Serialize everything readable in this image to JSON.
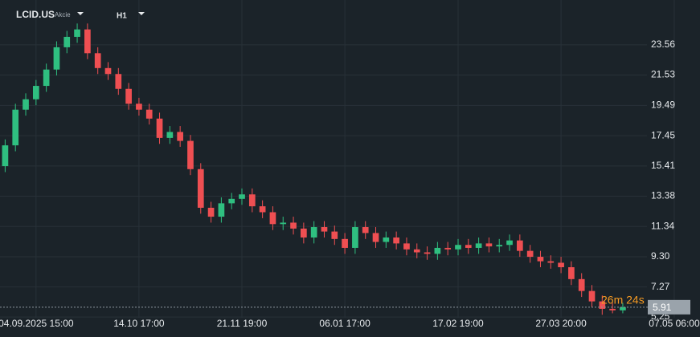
{
  "header": {
    "symbol": "LCID.US",
    "asset_type": "Akcie",
    "timeframe": "H1"
  },
  "chart_data": {
    "type": "candlestick",
    "categories": [
      null,
      null,
      null,
      "04.09.2025 15:00",
      null,
      null,
      null,
      null,
      null,
      null,
      null,
      null,
      null,
      "14.10 17:00",
      null,
      null,
      null,
      null,
      null,
      null,
      null,
      null,
      null,
      "21.11 19:00",
      null,
      null,
      null,
      null,
      null,
      null,
      null,
      null,
      null,
      "06.01 17:00",
      null,
      null,
      null,
      null,
      null,
      null,
      null,
      null,
      null,
      null,
      "17.02 19:00",
      null,
      null,
      null,
      null,
      null,
      null,
      null,
      null,
      null,
      "27.03 20:00",
      null,
      null,
      null,
      null,
      null,
      null,
      null,
      null,
      null,
      null,
      "07.05 06:00",
      null,
      null
    ],
    "open": [
      15.4,
      16.8,
      19.2,
      19.9,
      20.8,
      21.9,
      23.4,
      24.1,
      24.6,
      23.0,
      22.0,
      21.6,
      20.6,
      19.6,
      19.2,
      18.6,
      17.3,
      17.7,
      17.1,
      15.2,
      12.6,
      12.0,
      12.9,
      13.2,
      13.5,
      12.7,
      12.3,
      11.5,
      11.6,
      11.2,
      10.6,
      11.3,
      11.0,
      10.5,
      9.9,
      11.3,
      10.9,
      10.3,
      10.6,
      10.2,
      9.8,
      9.6,
      9.5,
      9.9,
      9.8,
      10.1,
      9.9,
      10.2,
      10.0,
      10.1,
      10.4,
      9.7,
      9.3,
      9.0,
      8.9,
      8.6,
      7.8,
      7.0,
      6.3,
      5.8,
      5.7,
      null,
      null,
      null,
      null,
      null,
      null,
      null
    ],
    "high": [
      17.2,
      19.6,
      20.3,
      21.2,
      22.3,
      23.8,
      24.5,
      25.0,
      25.0,
      23.4,
      22.4,
      22.0,
      21.0,
      20.0,
      19.6,
      19.0,
      18.1,
      18.1,
      17.5,
      15.6,
      13.0,
      13.3,
      13.6,
      13.9,
      13.9,
      13.1,
      12.7,
      12.0,
      12.0,
      11.6,
      11.7,
      11.7,
      11.4,
      10.9,
      11.7,
      11.7,
      11.3,
      11.0,
      11.0,
      10.6,
      10.2,
      10.0,
      10.3,
      10.3,
      10.5,
      10.5,
      10.6,
      10.6,
      10.5,
      10.8,
      10.8,
      10.1,
      9.7,
      9.4,
      9.3,
      9.0,
      8.2,
      7.4,
      6.7,
      6.2,
      6.2,
      null,
      null,
      null,
      null,
      null,
      null,
      null
    ],
    "low": [
      15.0,
      16.4,
      18.8,
      19.5,
      20.4,
      21.5,
      23.0,
      23.7,
      22.6,
      21.6,
      21.2,
      20.2,
      19.2,
      18.8,
      18.2,
      16.9,
      16.9,
      16.7,
      14.8,
      12.2,
      11.6,
      11.6,
      12.5,
      12.8,
      12.3,
      11.9,
      11.1,
      11.1,
      10.8,
      10.2,
      10.2,
      10.6,
      10.1,
      9.5,
      9.5,
      10.5,
      9.9,
      9.9,
      9.8,
      9.4,
      9.2,
      9.1,
      9.1,
      9.4,
      9.4,
      9.5,
      9.5,
      9.6,
      9.6,
      9.7,
      9.3,
      8.9,
      8.6,
      8.5,
      8.2,
      7.4,
      6.6,
      5.9,
      5.4,
      5.5,
      5.5,
      null,
      null,
      null,
      null,
      null,
      null,
      null
    ],
    "close": [
      16.8,
      19.2,
      19.9,
      20.8,
      21.9,
      23.4,
      24.1,
      24.6,
      23.0,
      22.0,
      21.6,
      20.6,
      19.6,
      19.2,
      18.6,
      17.3,
      17.7,
      17.1,
      15.2,
      12.6,
      12.0,
      12.9,
      13.2,
      13.5,
      12.7,
      12.3,
      11.5,
      11.6,
      11.2,
      10.6,
      11.3,
      11.0,
      10.5,
      9.9,
      11.3,
      10.9,
      10.3,
      10.6,
      10.2,
      9.8,
      9.6,
      9.5,
      9.9,
      9.8,
      10.1,
      9.9,
      10.2,
      10.0,
      10.1,
      10.4,
      9.7,
      9.3,
      9.0,
      8.9,
      8.6,
      7.8,
      7.0,
      6.3,
      5.8,
      5.7,
      5.91,
      null,
      null,
      null,
      null,
      null,
      null,
      null
    ],
    "ylim": [
      5.2,
      26.58
    ],
    "yticks": [
      5.25,
      7.27,
      {
        "value": 9.3,
        "label": "9.30"
      },
      11.34,
      13.38,
      15.41,
      17.45,
      19.49,
      21.53,
      23.56
    ],
    "grid": true,
    "up_color": "#2fbf80",
    "down_color": "#ef4f52",
    "last_price": 5.91,
    "countdown": "26m 24s"
  }
}
